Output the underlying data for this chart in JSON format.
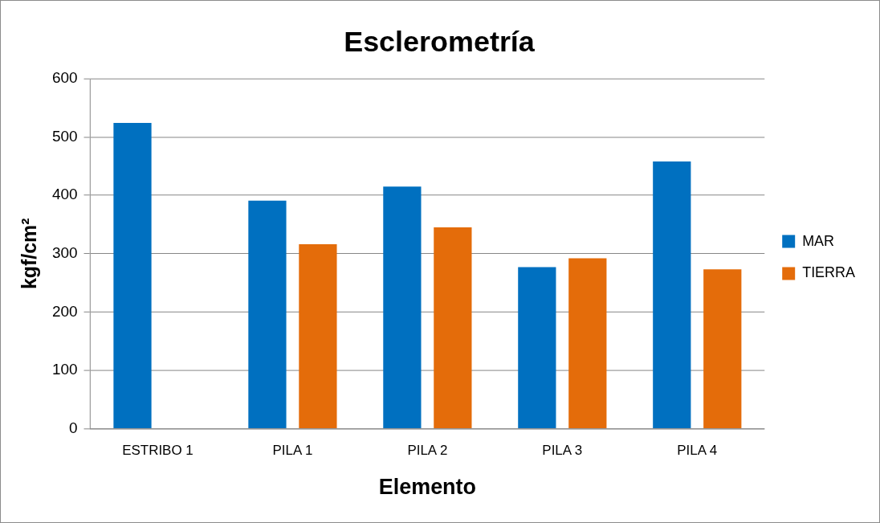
{
  "chart_data": {
    "type": "bar",
    "title": "Esclerometría",
    "xlabel": "Elemento",
    "ylabel": "kgf/cm²",
    "categories": [
      "ESTRIBO 1",
      "PILA 1",
      "PILA 2",
      "PILA 3",
      "PILA 4"
    ],
    "series": [
      {
        "name": "MAR",
        "color": "#0070c0",
        "values": [
          524,
          391,
          415,
          277,
          458
        ]
      },
      {
        "name": "TIERRA",
        "color": "#e46c0a",
        "values": [
          null,
          316,
          345,
          292,
          273
        ]
      }
    ],
    "ylim": [
      0,
      600
    ],
    "yticks": [
      0,
      100,
      200,
      300,
      400,
      500,
      600
    ],
    "grid": "y",
    "legend": "right"
  }
}
